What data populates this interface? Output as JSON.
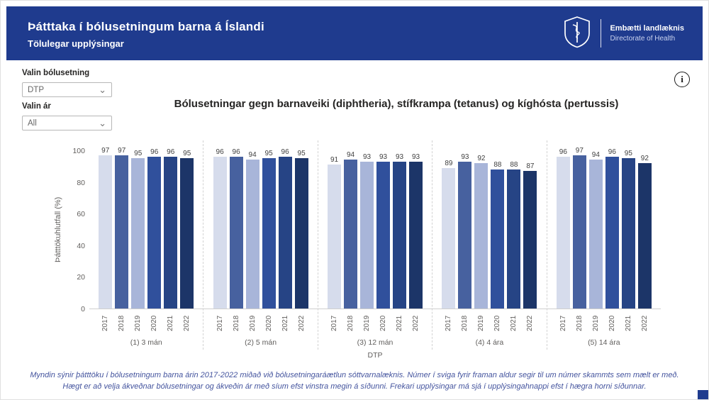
{
  "colors": {
    "header_bg": "#1F3B8E",
    "footer_text": "#44549E",
    "axis_text": "#605E5C"
  },
  "header": {
    "title": "Þátttaka í bólusetningum barna á Íslandi",
    "subtitle": "Tölulegar upplýsingar",
    "org_name": "Embætti landlæknis",
    "org_subtitle": "Directorate of Health"
  },
  "filters": {
    "vaccine_label": "Valin bólusetning",
    "vaccine_value": "DTP",
    "year_label": "Valin ár",
    "year_value": "All"
  },
  "info": {
    "glyph": "i"
  },
  "chart_data": {
    "type": "bar",
    "title": "Bólusetningar gegn barnaveiki (diphtheria), stífkrampa (tetanus) og kíghósta (pertussis)",
    "ylabel": "Þátttökuhlutfall (%)",
    "xlabel": "DTP",
    "ylim": [
      0,
      100
    ],
    "yticks": [
      0,
      20,
      40,
      60,
      80,
      100
    ],
    "grid": false,
    "legend": "none",
    "years": [
      "2017",
      "2018",
      "2019",
      "2020",
      "2021",
      "2022"
    ],
    "colors": [
      "#D6DCEC",
      "#47619F",
      "#A8B5D9",
      "#30509C",
      "#264485",
      "#1C3568"
    ],
    "groups": [
      {
        "label": "(1) 3 mán",
        "values": [
          97,
          97,
          95,
          96,
          96,
          95
        ]
      },
      {
        "label": "(2) 5 mán",
        "values": [
          96,
          96,
          94,
          95,
          96,
          95
        ]
      },
      {
        "label": "(3) 12 mán",
        "values": [
          91,
          94,
          93,
          93,
          93,
          93
        ]
      },
      {
        "label": "(4) 4 ára",
        "values": [
          89,
          93,
          92,
          88,
          88,
          87
        ]
      },
      {
        "label": "(5) 14 ára",
        "values": [
          96,
          97,
          94,
          96,
          95,
          92
        ]
      }
    ]
  },
  "footer": {
    "text": "Myndin sýnir þátttöku í bólusetningum barna árin 2017-2022 miðað við bólusetningaráætlun sóttvarnalæknis. Númer í sviga fyrir framan aldur segir til um númer skammts sem mælt er með. Hægt er að velja ákveðnar bólusetningar og ákveðin ár með síum efst vinstra megin á síðunni. Frekari upplýsingar má sjá í upplýsingahnappi efst í hægra horni síðunnar."
  }
}
